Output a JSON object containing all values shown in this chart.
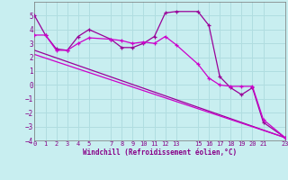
{
  "xlabel": "Windchill (Refroidissement éolien,°C)",
  "bg_color": "#c8eef0",
  "grid_color": "#b0dde0",
  "line_color": "#990099",
  "line_color2": "#cc00cc",
  "xlim": [
    0,
    23
  ],
  "ylim": [
    -4,
    6
  ],
  "xticks": [
    0,
    1,
    2,
    3,
    4,
    5,
    7,
    8,
    9,
    10,
    11,
    12,
    13,
    15,
    16,
    17,
    18,
    19,
    20,
    21,
    23
  ],
  "yticks": [
    -4,
    -3,
    -2,
    -1,
    0,
    1,
    2,
    3,
    4,
    5
  ],
  "series1_x": [
    0,
    1,
    2,
    3,
    4,
    5,
    7,
    8,
    9,
    10,
    11,
    12,
    13,
    15,
    16,
    17,
    18,
    19,
    20,
    21,
    23
  ],
  "series1_y": [
    5.0,
    3.6,
    2.6,
    2.5,
    3.5,
    4.0,
    3.3,
    2.7,
    2.7,
    3.0,
    3.5,
    5.2,
    5.3,
    5.3,
    4.3,
    0.6,
    -0.2,
    -0.7,
    -0.2,
    -2.7,
    -3.8
  ],
  "series2_x": [
    0,
    1,
    2,
    3,
    4,
    5,
    7,
    8,
    9,
    10,
    11,
    12,
    13,
    15,
    16,
    17,
    18,
    19,
    20,
    21,
    23
  ],
  "series2_y": [
    3.6,
    3.6,
    2.5,
    2.5,
    3.0,
    3.4,
    3.3,
    3.2,
    3.0,
    3.1,
    3.0,
    3.5,
    2.9,
    1.5,
    0.5,
    0.0,
    -0.1,
    -0.1,
    -0.1,
    -2.5,
    -3.8
  ],
  "series3_x": [
    0,
    23
  ],
  "series3_y": [
    2.5,
    -3.8
  ],
  "series4_x": [
    0,
    23
  ],
  "series4_y": [
    2.2,
    -3.8
  ]
}
